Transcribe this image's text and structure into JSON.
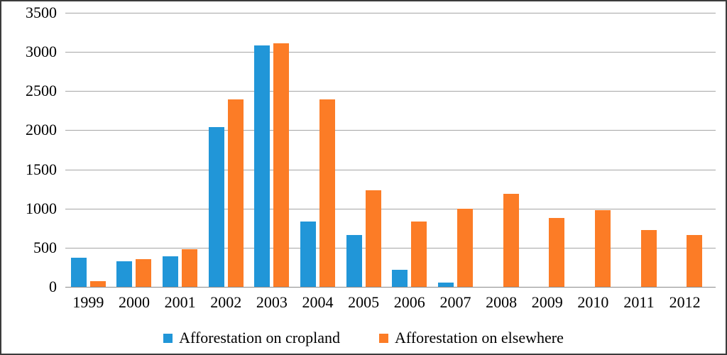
{
  "figure": {
    "background": "#ffffff",
    "border_color": "#3b3b3b"
  },
  "chart_data": {
    "type": "bar",
    "title": "",
    "xlabel": "",
    "ylabel": "",
    "categories": [
      "1999",
      "2000",
      "2001",
      "2002",
      "2003",
      "2004",
      "2005",
      "2006",
      "2007",
      "2008",
      "2009",
      "2010",
      "2011",
      "2012"
    ],
    "series": [
      {
        "name": "Afforestation on cropland",
        "color": "#2196d8",
        "values": [
          375,
          330,
          390,
          2040,
          3085,
          830,
          665,
          215,
          55,
          0,
          0,
          0,
          0,
          0
        ]
      },
      {
        "name": "Afforestation on elsewhere",
        "color": "#fc7c26",
        "values": [
          70,
          355,
          480,
          2390,
          3110,
          2395,
          1230,
          830,
          1000,
          1190,
          880,
          975,
          730,
          660
        ]
      }
    ],
    "ylim": [
      0,
      3500
    ],
    "yticks": [
      0,
      500,
      1000,
      1500,
      2000,
      2500,
      3000,
      3500
    ],
    "grid": true,
    "gridline_color": "#a6a6a6",
    "baseline_color": "#8a8a8a",
    "legend_position": "bottom",
    "text_color": "#000000"
  }
}
